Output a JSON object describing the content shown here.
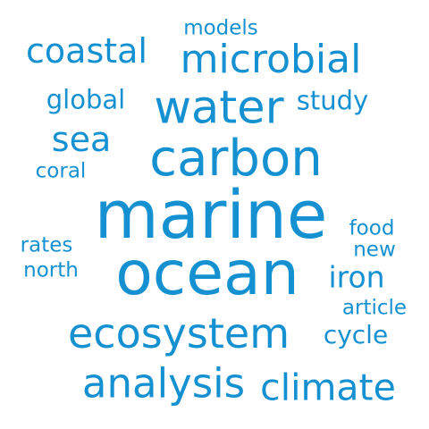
{
  "word_cloud": {
    "color": "#1591d2",
    "background": "#ffffff",
    "words": [
      {
        "text": "marine"
      },
      {
        "text": "ocean"
      },
      {
        "text": "carbon"
      },
      {
        "text": "water"
      },
      {
        "text": "microbial"
      },
      {
        "text": "ecosystem"
      },
      {
        "text": "analysis"
      },
      {
        "text": "climate"
      },
      {
        "text": "coastal"
      },
      {
        "text": "sea"
      },
      {
        "text": "global"
      },
      {
        "text": "study"
      },
      {
        "text": "iron"
      },
      {
        "text": "cycle"
      },
      {
        "text": "models"
      },
      {
        "text": "coral"
      },
      {
        "text": "rates"
      },
      {
        "text": "north"
      },
      {
        "text": "food"
      },
      {
        "text": "new"
      },
      {
        "text": "article"
      }
    ]
  }
}
